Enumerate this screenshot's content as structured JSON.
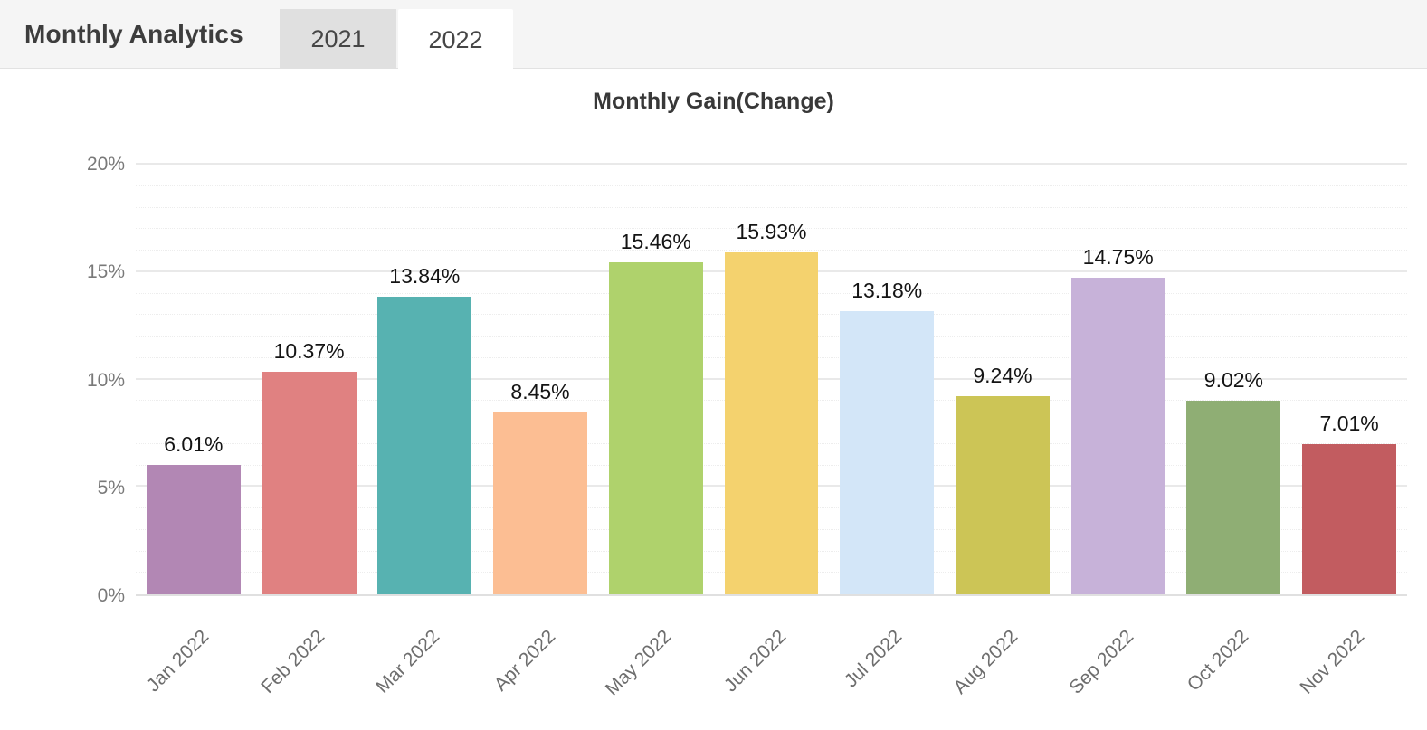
{
  "header": {
    "title": "Monthly Analytics",
    "tabs": [
      {
        "label": "2021",
        "active": false
      },
      {
        "label": "2022",
        "active": true
      }
    ]
  },
  "chart_data": {
    "type": "bar",
    "title": "Monthly Gain(Change)",
    "categories": [
      "Jan 2022",
      "Feb 2022",
      "Mar 2022",
      "Apr 2022",
      "May 2022",
      "Jun 2022",
      "Jul 2022",
      "Aug 2022",
      "Sep 2022",
      "Oct 2022",
      "Nov 2022"
    ],
    "values": [
      6.01,
      10.37,
      13.84,
      8.45,
      15.46,
      15.93,
      13.18,
      9.24,
      14.75,
      9.02,
      7.01
    ],
    "value_labels": [
      "6.01%",
      "10.37%",
      "13.84%",
      "8.45%",
      "15.46%",
      "15.93%",
      "13.18%",
      "9.24%",
      "14.75%",
      "9.02%",
      "7.01%"
    ],
    "bar_colors": [
      "#b287b4",
      "#e08181",
      "#57b2b1",
      "#fcbe93",
      "#afd26c",
      "#f4d26e",
      "#d3e6f8",
      "#ccc556",
      "#c7b2d9",
      "#8fae74",
      "#c25c60"
    ],
    "xlabel": "",
    "ylabel": "",
    "ylim": [
      0,
      20
    ],
    "y_major_step": 5,
    "y_minor_step": 1,
    "y_tick_labels": [
      "0%",
      "5%",
      "10%",
      "15%",
      "20%"
    ],
    "grid": true,
    "legend": "none"
  },
  "colors": {
    "header_bg": "#f5f5f5",
    "tab_inactive_bg": "#e0e0e0",
    "tab_active_bg": "#ffffff",
    "grid_major": "#e9e9e9",
    "grid_minor": "#ededed",
    "axis_text": "#757575",
    "value_text": "#141414"
  }
}
